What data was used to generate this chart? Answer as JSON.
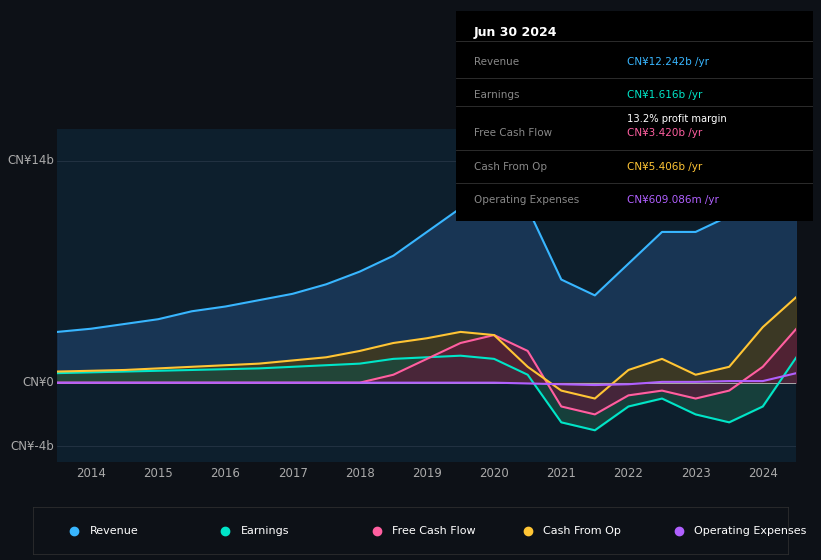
{
  "bg_color": "#0d1117",
  "plot_bg_color": "#0d1f2d",
  "ylim": [
    -5000000000.0,
    16000000000.0
  ],
  "ytick_vals": [
    -4000000000.0,
    0,
    14000000000.0
  ],
  "ylabel_ticks": [
    "CN¥-4b",
    "CN¥0",
    "CN¥14b"
  ],
  "series_colors": {
    "revenue": "#38b6ff",
    "earnings": "#00e5c8",
    "free_cash_flow": "#ff5fa0",
    "cash_from_op": "#ffc535",
    "operating_expenses": "#b060ff"
  },
  "fill_colors": {
    "revenue": "#1a3a5c",
    "earnings": "#1a4a40",
    "free_cash_flow": "#5a1a3a",
    "cash_from_op": "#4a3a10"
  },
  "info_box": {
    "date": "Jun 30 2024",
    "revenue_val": "CN¥12.242b",
    "earnings_val": "CN¥1.616b",
    "profit_margin": "13.2%",
    "fcf_val": "CN¥3.420b",
    "cash_from_op_val": "CN¥5.406b",
    "op_exp_val": "CN¥609.086m"
  },
  "legend": [
    {
      "label": "Revenue",
      "color": "#38b6ff"
    },
    {
      "label": "Earnings",
      "color": "#00e5c8"
    },
    {
      "label": "Free Cash Flow",
      "color": "#ff5fa0"
    },
    {
      "label": "Cash From Op",
      "color": "#ffc535"
    },
    {
      "label": "Operating Expenses",
      "color": "#b060ff"
    }
  ],
  "years": [
    2013.5,
    2014,
    2014.5,
    2015,
    2015.5,
    2016,
    2016.5,
    2017,
    2017.5,
    2018,
    2018.5,
    2019,
    2019.5,
    2020,
    2020.5,
    2021,
    2021.5,
    2022,
    2022.5,
    2023,
    2023.5,
    2024,
    2024.5
  ],
  "revenue": [
    3200000000.0,
    3400000000.0,
    3700000000.0,
    4000000000.0,
    4500000000.0,
    4800000000.0,
    5200000000.0,
    5600000000.0,
    6200000000.0,
    7000000000.0,
    8000000000.0,
    9500000000.0,
    11000000000.0,
    12500000000.0,
    11000000000.0,
    6500000000.0,
    5500000000.0,
    7500000000.0,
    9500000000.0,
    9500000000.0,
    10500000000.0,
    11500000000.0,
    12400000000.0
  ],
  "earnings": [
    600000000.0,
    650000000.0,
    700000000.0,
    750000000.0,
    800000000.0,
    850000000.0,
    900000000.0,
    1000000000.0,
    1100000000.0,
    1200000000.0,
    1500000000.0,
    1600000000.0,
    1700000000.0,
    1500000000.0,
    500000000.0,
    -2500000000.0,
    -3000000000.0,
    -1500000000.0,
    -1000000000.0,
    -2000000000.0,
    -2500000000.0,
    -1500000000.0,
    1600000000.0
  ],
  "free_cash_flow": [
    0.0,
    0.0,
    0.0,
    0.0,
    0.0,
    0.0,
    0.0,
    0.0,
    0.0,
    0.0,
    500000000.0,
    1500000000.0,
    2500000000.0,
    3000000000.0,
    2000000000.0,
    -1500000000.0,
    -2000000000.0,
    -800000000.0,
    -500000000.0,
    -1000000000.0,
    -500000000.0,
    1000000000.0,
    3400000000.0
  ],
  "cash_from_op": [
    700000000.0,
    750000000.0,
    800000000.0,
    900000000.0,
    1000000000.0,
    1100000000.0,
    1200000000.0,
    1400000000.0,
    1600000000.0,
    2000000000.0,
    2500000000.0,
    2800000000.0,
    3200000000.0,
    3000000000.0,
    1000000000.0,
    -500000000.0,
    -1000000000.0,
    800000000.0,
    1500000000.0,
    500000000.0,
    1000000000.0,
    3500000000.0,
    5400000000.0
  ],
  "operating_expenses": [
    0.0,
    0.0,
    0.0,
    0.0,
    0.0,
    0.0,
    0.0,
    0.0,
    0.0,
    0.0,
    0.0,
    0.0,
    0.0,
    0.0,
    -50000000.0,
    -100000000.0,
    -150000000.0,
    -100000000.0,
    50000000.0,
    50000000.0,
    100000000.0,
    100000000.0,
    600000000.0
  ]
}
